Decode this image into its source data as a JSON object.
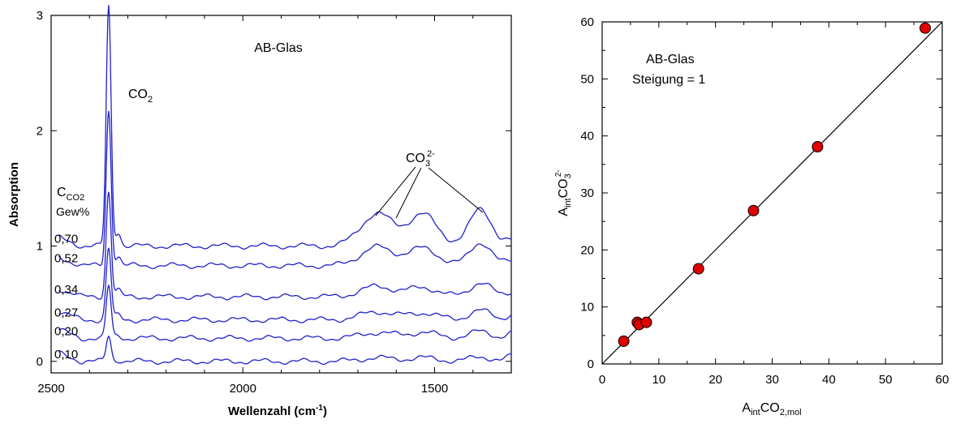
{
  "chart_data": [
    {
      "type": "line",
      "xlabel": "Wellenzahl (cm",
      "xlabel_sup": "-1",
      "xlabel_end": ")",
      "ylabel": "Absorption",
      "xlim": [
        2500,
        1300
      ],
      "ylim": [
        -0.1,
        3.0
      ],
      "xticks": [
        "2500",
        "2000",
        "1500"
      ],
      "xtick_values": [
        2500,
        2000,
        1500
      ],
      "yticks": [
        "0",
        "1",
        "2",
        "3"
      ],
      "ytick_values": [
        0,
        1,
        2,
        3
      ],
      "annotations": {
        "sample": "AB-Glas",
        "co2_base": "CO",
        "co2_sub": "2",
        "carbonate_base": "CO",
        "carbonate_sub": "3",
        "carbonate_sup": "2-",
        "conc_base": "C",
        "conc_sub": "CO2",
        "conc_unit": "Gew%"
      },
      "line_color": "#2020cc",
      "series": [
        {
          "name": "0,10",
          "baseline": 0.0,
          "co2_peak": 0.22,
          "carb_1650": 0.03,
          "carb_1520": 0.03,
          "carb_1380": 0.04
        },
        {
          "name": "0,20",
          "baseline": 0.2,
          "co2_peak": 0.45,
          "carb_1650": 0.05,
          "carb_1520": 0.05,
          "carb_1380": 0.06
        },
        {
          "name": "0,27",
          "baseline": 0.36,
          "co2_peak": 0.62,
          "carb_1650": 0.07,
          "carb_1520": 0.06,
          "carb_1380": 0.08
        },
        {
          "name": "0,34",
          "baseline": 0.56,
          "co2_peak": 0.92,
          "carb_1650": 0.09,
          "carb_1520": 0.08,
          "carb_1380": 0.12
        },
        {
          "name": "0,52",
          "baseline": 0.83,
          "co2_peak": 1.35,
          "carb_1650": 0.16,
          "carb_1520": 0.15,
          "carb_1380": 0.2
        },
        {
          "name": "0,70",
          "baseline": 1.0,
          "co2_peak": 2.08,
          "carb_1650": 0.28,
          "carb_1520": 0.27,
          "carb_1380": 0.33
        }
      ]
    },
    {
      "type": "scatter",
      "xlabel_base": "A",
      "xlabel_sub1": "int",
      "xlabel_mid": "CO",
      "xlabel_sub2": "2,mol",
      "ylabel_base": "A",
      "ylabel_sub1": "int",
      "ylabel_mid": "CO",
      "ylabel_sub2": "3",
      "ylabel_sup": "2-",
      "xlim": [
        0,
        60
      ],
      "ylim": [
        0,
        60
      ],
      "xticks": [
        "0",
        "10",
        "20",
        "30",
        "40",
        "50",
        "60"
      ],
      "xtick_values": [
        0,
        10,
        20,
        30,
        40,
        50,
        60
      ],
      "yticks": [
        "0",
        "10",
        "20",
        "30",
        "40",
        "50",
        "60"
      ],
      "ytick_values": [
        0,
        10,
        20,
        30,
        40,
        50,
        60
      ],
      "annotations": {
        "sample": "AB-Glas",
        "slope": "Steigung = 1"
      },
      "marker_color": "#e00000",
      "fit_line": {
        "from": [
          0,
          0
        ],
        "to": [
          60,
          60
        ]
      },
      "points": [
        {
          "x": 3.8,
          "y": 4.0
        },
        {
          "x": 6.2,
          "y": 7.3
        },
        {
          "x": 6.5,
          "y": 6.9
        },
        {
          "x": 7.8,
          "y": 7.3
        },
        {
          "x": 17.0,
          "y": 16.7
        },
        {
          "x": 26.7,
          "y": 26.9
        },
        {
          "x": 38.0,
          "y": 38.1
        },
        {
          "x": 57.0,
          "y": 58.9
        }
      ]
    }
  ]
}
